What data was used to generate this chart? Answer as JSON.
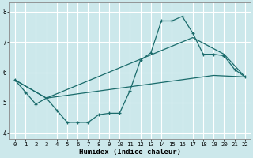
{
  "xlabel": "Humidex (Indice chaleur)",
  "bg_color": "#cce8eb",
  "grid_color": "#b0d8dc",
  "line_color": "#1a6b6b",
  "xlim": [
    -0.5,
    22.5
  ],
  "ylim": [
    3.8,
    8.3
  ],
  "xticks": [
    0,
    1,
    2,
    3,
    4,
    5,
    6,
    7,
    8,
    9,
    10,
    11,
    12,
    13,
    14,
    15,
    16,
    17,
    18,
    19,
    20,
    21,
    22
  ],
  "yticks": [
    4,
    5,
    6,
    7,
    8
  ],
  "line1_x": [
    0,
    1,
    2,
    3,
    4,
    5,
    6,
    7,
    8,
    9,
    10,
    11,
    12,
    13,
    14,
    15,
    16,
    17,
    18,
    19,
    20,
    21,
    22
  ],
  "line1_y": [
    5.75,
    5.35,
    4.95,
    5.15,
    4.75,
    4.35,
    4.35,
    4.35,
    4.6,
    4.65,
    4.65,
    5.4,
    6.4,
    6.65,
    7.7,
    7.7,
    7.85,
    7.3,
    6.6,
    6.6,
    6.55,
    6.1,
    5.85
  ],
  "line2_x": [
    0,
    3,
    17,
    20,
    22
  ],
  "line2_y": [
    5.75,
    5.15,
    7.15,
    6.6,
    5.85
  ],
  "line3_x": [
    0,
    3,
    19,
    22
  ],
  "line3_y": [
    5.75,
    5.15,
    5.9,
    5.85
  ]
}
